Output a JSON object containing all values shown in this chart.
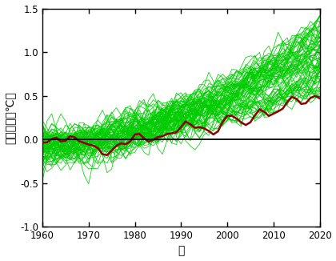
{
  "xmin": 1960,
  "xmax": 2020,
  "ymin": -1.0,
  "ymax": 1.5,
  "xticks": [
    1960,
    1970,
    1980,
    1990,
    2000,
    2010,
    2020
  ],
  "yticks": [
    -1.0,
    -0.5,
    0.0,
    0.5,
    1.0,
    1.5
  ],
  "xlabel": "年",
  "ylabel": "気温変化（℃）",
  "green_color": "#00cc00",
  "red_color": "#8b0000",
  "hline_y": 0.0,
  "n_models": 75,
  "background_color": "#ffffff",
  "figsize": [
    4.2,
    3.26
  ],
  "dpi": 100
}
